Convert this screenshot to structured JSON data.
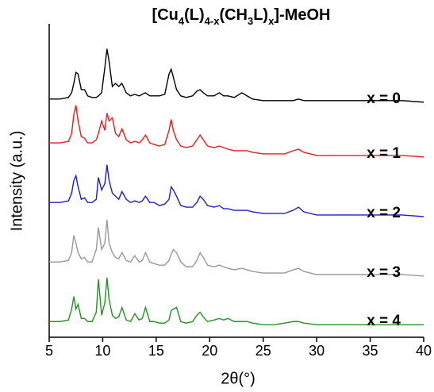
{
  "chart_data": {
    "type": "line",
    "title": [
      {
        "text": "[Cu"
      },
      {
        "text": "4",
        "sub": true
      },
      {
        "text": "(L)"
      },
      {
        "text": "4-x",
        "sub": true
      },
      {
        "text": "(CH"
      },
      {
        "text": "3",
        "sub": true
      },
      {
        "text": "L)"
      },
      {
        "text": "x",
        "sub": true
      },
      {
        "text": "]-MeOH"
      }
    ],
    "x_label": "2θ(°)",
    "y_label": "Intensity (a.u.)",
    "x": [
      5,
      6,
      6.8,
      7.1,
      7.3,
      7.5,
      7.7,
      8.0,
      8.3,
      8.6,
      9.0,
      9.4,
      9.6,
      9.9,
      10.2,
      10.4,
      10.6,
      10.9,
      11.2,
      11.5,
      11.8,
      12.2,
      12.6,
      13.0,
      13.4,
      13.7,
      14.0,
      14.4,
      14.8,
      15.3,
      15.8,
      16.2,
      16.4,
      16.6,
      16.9,
      17.3,
      17.8,
      18.4,
      18.8,
      19.1,
      19.4,
      19.8,
      20.4,
      20.9,
      21.3,
      21.7,
      22.3,
      23.0,
      23.5,
      24.0,
      25,
      26,
      27,
      27.8,
      28.3,
      28.8,
      30,
      32,
      34,
      36,
      38,
      40
    ],
    "series": [
      {
        "name": "x = 0",
        "color": "#000000",
        "values": [
          76,
          76,
          76.5,
          78,
          81,
          84.5,
          84,
          79,
          79,
          77,
          76.5,
          76.5,
          77,
          78,
          86,
          92,
          88,
          80,
          81,
          80,
          81,
          78,
          77,
          77.5,
          77,
          77.5,
          78,
          77,
          77,
          77,
          77.5,
          84,
          85.5,
          83,
          79,
          77,
          76.5,
          77,
          78.5,
          79,
          78,
          77,
          77,
          78,
          77,
          77,
          76.5,
          78,
          77,
          76,
          75.5,
          75.5,
          75.5,
          75.5,
          76,
          75.5,
          75.5,
          75.5,
          75.5,
          75.5,
          75.5,
          75
        ]
      },
      {
        "name": "x = 1",
        "color": "#ee1c1c",
        "values": [
          62,
          62,
          62.5,
          65,
          71,
          74,
          69,
          64,
          63.5,
          62,
          62,
          63,
          65,
          69,
          66,
          71.5,
          69,
          70,
          65,
          64,
          66.5,
          63,
          62,
          62.5,
          62,
          63,
          64.5,
          62,
          61.5,
          61,
          61.5,
          66,
          69.5,
          66,
          63,
          61,
          60.5,
          61,
          63,
          64.5,
          63,
          61,
          60.5,
          61,
          60.5,
          60,
          59.5,
          59.5,
          59.5,
          59,
          58.5,
          58.5,
          58.5,
          59.5,
          60,
          59,
          58,
          58,
          58,
          58,
          58,
          57.5
        ]
      },
      {
        "name": "x = 2",
        "color": "#1c1cd8",
        "values": [
          43,
          43,
          43.5,
          46,
          50,
          51.5,
          48,
          44,
          44.5,
          43,
          43,
          44,
          51,
          47,
          49,
          55,
          50,
          46,
          45,
          44,
          46.5,
          44,
          43,
          43.5,
          43,
          43.5,
          45,
          43,
          43,
          42,
          42.5,
          44,
          48,
          47,
          45,
          42,
          41.5,
          41.5,
          43,
          45,
          44,
          42,
          41.5,
          42,
          41,
          41,
          40.5,
          40.5,
          40.5,
          40,
          39.5,
          39.5,
          39.5,
          40.5,
          41.5,
          40,
          39,
          39,
          39,
          39,
          39,
          38.5
        ]
      },
      {
        "name": "x = 3",
        "color": "#999999",
        "values": [
          24,
          24,
          24.5,
          27,
          32.5,
          30,
          27,
          25,
          25.5,
          24,
          24,
          28,
          35,
          28,
          30,
          37.5,
          30,
          27,
          25.5,
          25,
          27,
          24.5,
          24,
          26,
          24,
          24.5,
          27,
          24,
          23.5,
          23,
          23,
          24.5,
          26.5,
          28,
          27,
          24,
          22.5,
          22.5,
          24.5,
          27,
          25.5,
          23,
          22.5,
          23,
          22.5,
          22,
          21.5,
          22,
          21.5,
          21,
          20.5,
          20.5,
          20.5,
          21.5,
          22,
          21,
          20,
          20,
          20,
          20,
          20,
          19.5
        ]
      },
      {
        "name": "x = 4",
        "color": "#1e961e",
        "values": [
          5,
          5,
          5.5,
          9,
          13,
          9,
          10.5,
          6,
          6,
          5,
          5,
          8,
          18.5,
          7,
          11,
          19,
          12,
          7,
          6,
          6.5,
          9.5,
          5.5,
          5,
          7.5,
          5.5,
          6,
          9.5,
          5,
          5,
          4.5,
          4.5,
          5.5,
          8.5,
          9,
          9.5,
          5,
          4.5,
          5,
          7,
          8,
          6.5,
          5,
          5.5,
          6,
          5.5,
          6,
          5,
          5,
          5,
          4.5,
          4,
          4,
          4.5,
          5,
          5,
          4.5,
          4,
          4,
          4,
          4,
          4,
          4
        ]
      }
    ],
    "xlim": [
      5,
      40
    ],
    "xticks": [
      5,
      10,
      15,
      20,
      25,
      30,
      35,
      40
    ],
    "ylim": [
      0,
      100
    ]
  }
}
